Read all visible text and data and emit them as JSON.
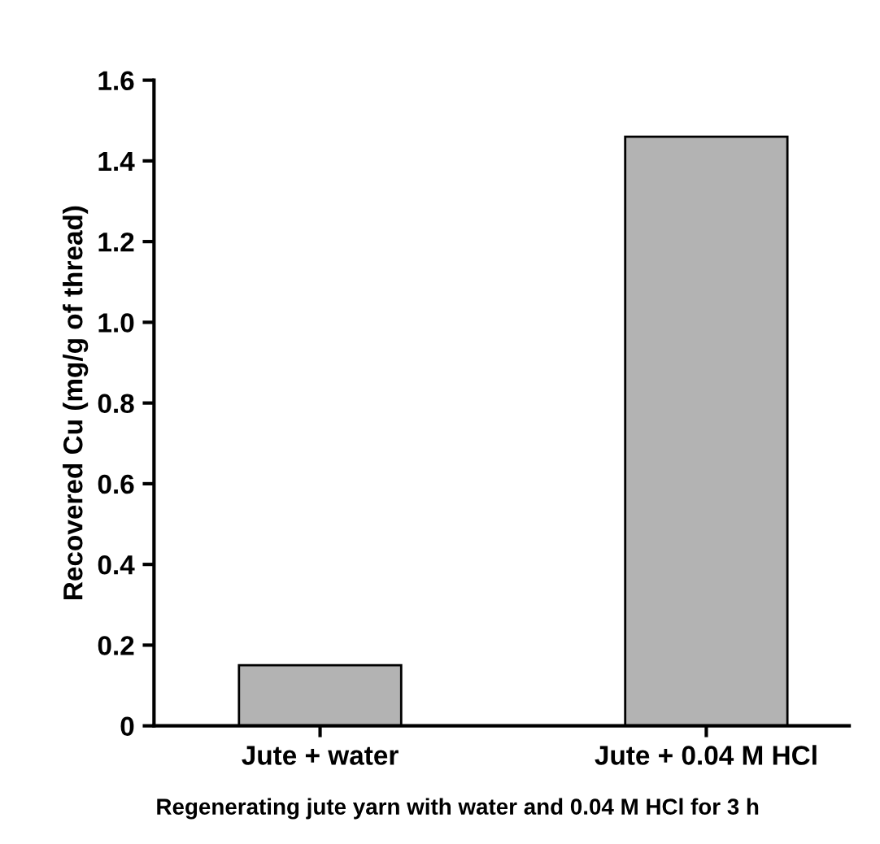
{
  "chart_data": {
    "type": "bar",
    "categories": [
      "Jute + water",
      "Jute + 0.04 M HCl"
    ],
    "values": [
      0.15,
      1.46
    ],
    "color": "#b3b3b3",
    "xlabel": "Regenerating jute yarn with water and 0.04 M HCl for 3 h",
    "ylabel": "Recovered Cu (mg/g of thread)",
    "ylim": [
      0,
      1.6
    ],
    "yticks": [
      0,
      0.2,
      0.4,
      0.6,
      0.8,
      {
        "value": 1,
        "label": "1.0"
      },
      1.2,
      1.4,
      1.6
    ],
    "grid": false,
    "legend": false
  }
}
